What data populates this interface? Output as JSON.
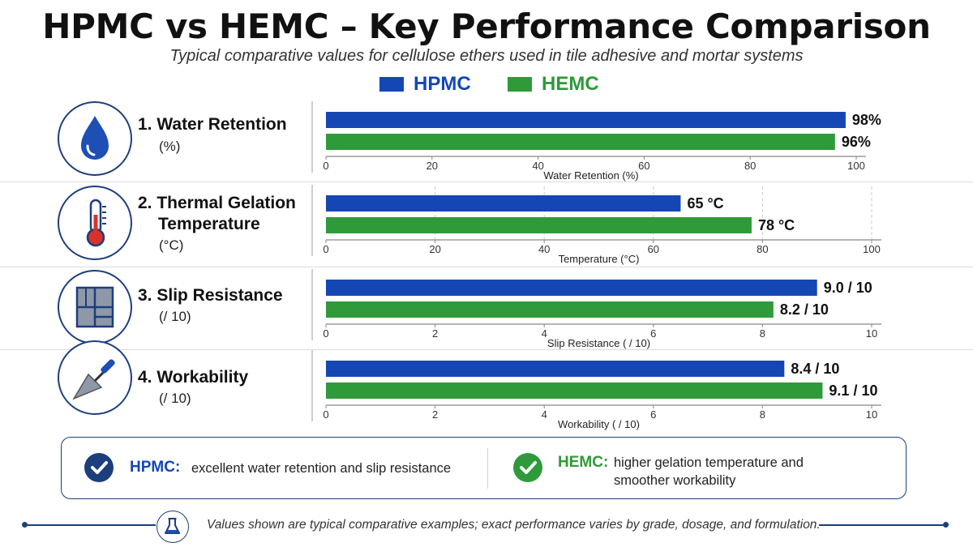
{
  "title": "HPMC vs HEMC – Key Performance Comparison",
  "subtitle": "Typical comparative values for cellulose ethers used in tile adhesive and mortar systems",
  "legend": [
    {
      "label": "HPMC",
      "color": "#1447b4"
    },
    {
      "label": "HEMC",
      "color": "#2f9a3a"
    }
  ],
  "colors": {
    "hpmc": "#1447b4",
    "hemc": "#2f9a3a",
    "navy": "#1d3e7c",
    "axis": "#888888"
  },
  "chart_data": [
    {
      "type": "bar",
      "title_lines": [
        "1. Water Retention"
      ],
      "unit": "(%)",
      "icon": "water-drop-icon",
      "xlabel": "Water Retention (%)",
      "xlim": [
        0,
        100
      ],
      "ticks": [
        0,
        20,
        40,
        60,
        80,
        100
      ],
      "series": [
        {
          "name": "HPMC",
          "value": 98,
          "label": "98%"
        },
        {
          "name": "HEMC",
          "value": 96,
          "label": "96%"
        }
      ],
      "grid": false
    },
    {
      "type": "bar",
      "title_lines": [
        "2. Thermal Gelation",
        "Temperature"
      ],
      "unit": "(°C)",
      "icon": "thermometer-icon",
      "xlabel": "Temperature (°C)",
      "xlim": [
        0,
        100
      ],
      "ticks": [
        0,
        20,
        40,
        60,
        80,
        100
      ],
      "series": [
        {
          "name": "HPMC",
          "value": 65,
          "label": "65 °C"
        },
        {
          "name": "HEMC",
          "value": 78,
          "label": "78 °C"
        }
      ],
      "grid": true
    },
    {
      "type": "bar",
      "title_lines": [
        "3. Slip Resistance"
      ],
      "unit": "(/ 10)",
      "icon": "tiles-icon",
      "xlabel": "Slip Resistance ( / 10)",
      "xlim": [
        0,
        10
      ],
      "ticks": [
        0,
        2,
        4,
        6,
        8,
        10
      ],
      "series": [
        {
          "name": "HPMC",
          "value": 9.0,
          "label": "9.0 / 10"
        },
        {
          "name": "HEMC",
          "value": 8.2,
          "label": "8.2 / 10"
        }
      ],
      "grid": false
    },
    {
      "type": "bar",
      "title_lines": [
        "4. Workability"
      ],
      "unit": "(/ 10)",
      "icon": "trowel-icon",
      "xlabel": "Workability ( / 10)",
      "xlim": [
        0,
        10
      ],
      "ticks": [
        0,
        2,
        4,
        6,
        8,
        10
      ],
      "series": [
        {
          "name": "HPMC",
          "value": 8.4,
          "label": "8.4 / 10"
        },
        {
          "name": "HEMC",
          "value": 9.1,
          "label": "9.1 / 10"
        }
      ],
      "grid": false
    }
  ],
  "summary": {
    "hpmc_key": "HPMC:",
    "hpmc_text": "excellent water retention and slip resistance",
    "hemc_key": "HEMC:",
    "hemc_text_1": "higher gelation temperature and",
    "hemc_text_2": "smoother workability",
    "check_icon": "check-circle-icon"
  },
  "footer": {
    "icon": "flask-icon",
    "text": "Values shown are typical comparative examples; exact performance varies by grade, dosage, and formulation."
  }
}
